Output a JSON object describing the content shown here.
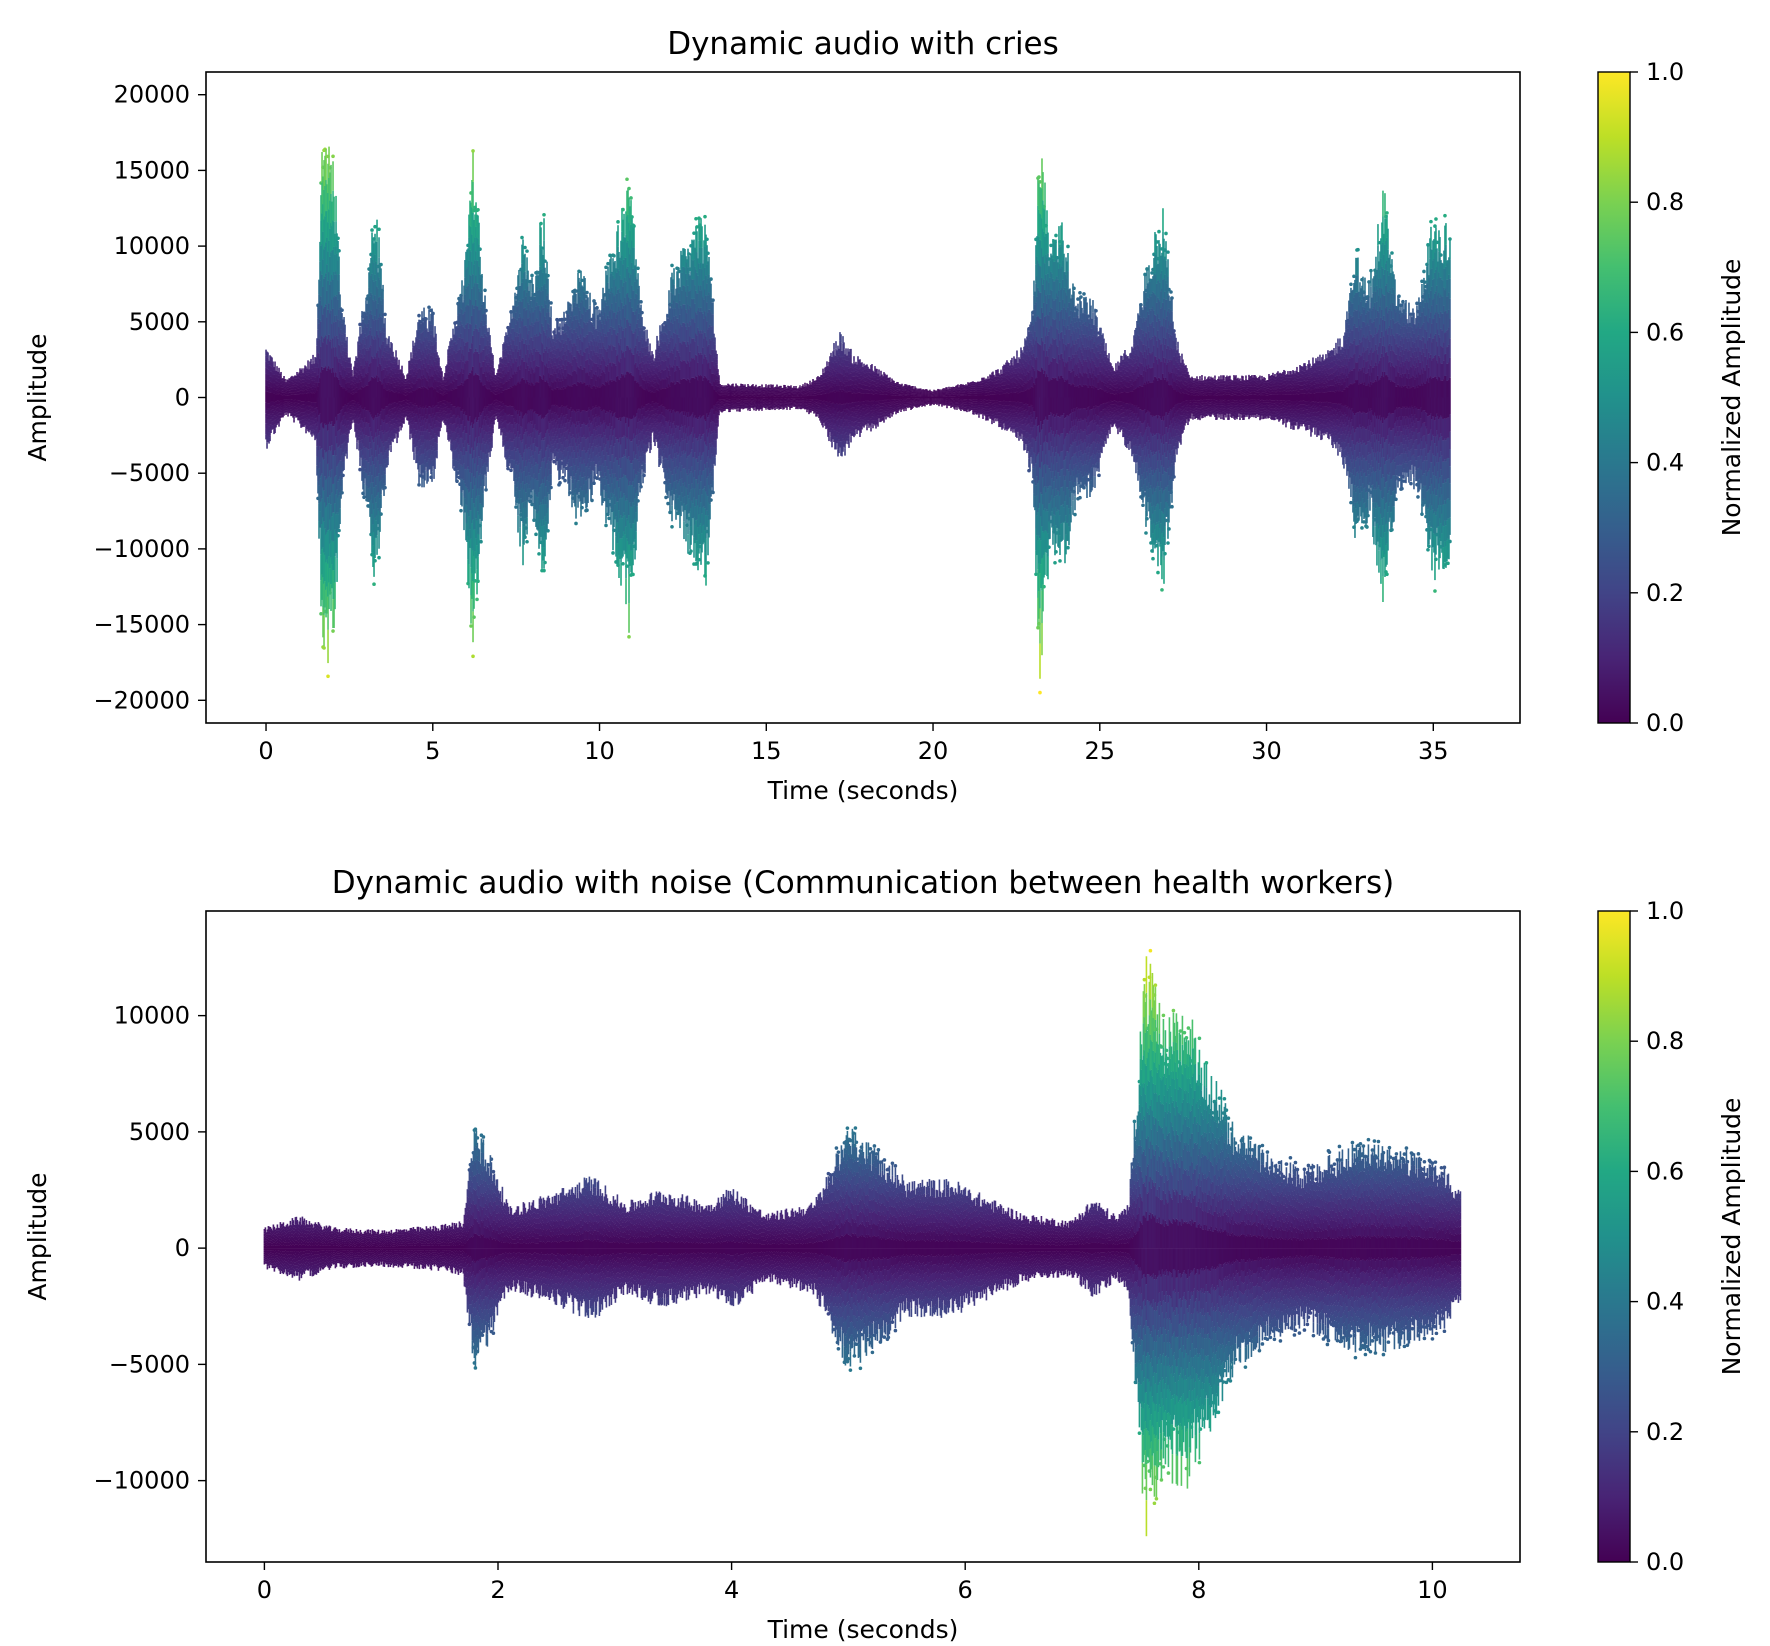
{
  "chart_data": [
    {
      "type": "scatter",
      "title": "Dynamic audio with cries",
      "xlabel": "Time (seconds)",
      "ylabel": "Amplitude",
      "xlim": [
        -1.8,
        37.6
      ],
      "ylim": [
        -21500,
        21500
      ],
      "xticks": [
        0,
        5,
        10,
        15,
        20,
        25,
        30,
        35
      ],
      "yticks": [
        -20000,
        -15000,
        -10000,
        -5000,
        0,
        5000,
        10000,
        15000,
        20000
      ],
      "x_range": [
        0,
        35.5
      ],
      "y_max": 19500,
      "colormap": "viridis",
      "colorbar": {
        "label": "Normalized Amplitude",
        "ticks": [
          0.0,
          0.2,
          0.4,
          0.6,
          0.8,
          1.0
        ],
        "tick_labels": [
          "0.0",
          "0.2",
          "0.4",
          "0.6",
          "0.8",
          "1.0"
        ]
      },
      "envelope": [
        [
          0,
          3500
        ],
        [
          0.6,
          1200
        ],
        [
          1.5,
          3000
        ],
        [
          1.7,
          18500
        ],
        [
          2.0,
          17000
        ],
        [
          2.3,
          6000
        ],
        [
          2.6,
          1500
        ],
        [
          2.9,
          6200
        ],
        [
          3.3,
          13000
        ],
        [
          3.6,
          5000
        ],
        [
          4.2,
          1500
        ],
        [
          4.6,
          6000
        ],
        [
          5.0,
          6000
        ],
        [
          5.3,
          1500
        ],
        [
          5.9,
          8000
        ],
        [
          6.2,
          16500
        ],
        [
          6.6,
          6000
        ],
        [
          6.9,
          1500
        ],
        [
          7.4,
          6500
        ],
        [
          7.7,
          11500
        ],
        [
          8.0,
          8000
        ],
        [
          8.3,
          13000
        ],
        [
          8.6,
          5000
        ],
        [
          9.0,
          6000
        ],
        [
          9.4,
          9000
        ],
        [
          9.9,
          6000
        ],
        [
          10.2,
          8500
        ],
        [
          10.5,
          11000
        ],
        [
          10.9,
          16000
        ],
        [
          11.2,
          7000
        ],
        [
          11.6,
          3000
        ],
        [
          12.2,
          8500
        ],
        [
          12.7,
          11000
        ],
        [
          13.2,
          12500
        ],
        [
          13.6,
          1000
        ],
        [
          16.0,
          800
        ],
        [
          16.6,
          1500
        ],
        [
          17.2,
          4500
        ],
        [
          17.6,
          3000
        ],
        [
          18.0,
          2500
        ],
        [
          19.0,
          1000
        ],
        [
          20.0,
          500
        ],
        [
          21.0,
          1000
        ],
        [
          22.0,
          2000
        ],
        [
          22.7,
          3500
        ],
        [
          23.0,
          6000
        ],
        [
          23.2,
          19000
        ],
        [
          23.5,
          10500
        ],
        [
          23.9,
          12000
        ],
        [
          24.3,
          7000
        ],
        [
          24.8,
          6500
        ],
        [
          25.4,
          2000
        ],
        [
          26.0,
          4000
        ],
        [
          26.5,
          10000
        ],
        [
          26.9,
          13000
        ],
        [
          27.3,
          4000
        ],
        [
          27.7,
          1500
        ],
        [
          30.0,
          1500
        ],
        [
          30.6,
          2000
        ],
        [
          31.2,
          2500
        ],
        [
          31.8,
          3000
        ],
        [
          32.3,
          4500
        ],
        [
          32.7,
          10000
        ],
        [
          33.1,
          8000
        ],
        [
          33.5,
          14500
        ],
        [
          33.9,
          7000
        ],
        [
          34.5,
          6000
        ],
        [
          35.0,
          12500
        ],
        [
          35.5,
          11500
        ]
      ]
    },
    {
      "type": "scatter",
      "title": "Dynamic audio with noise (Communication between health workers)",
      "xlabel": "Time (seconds)",
      "ylabel": "Amplitude",
      "xlim": [
        -0.5,
        10.75
      ],
      "ylim": [
        -13500,
        14500
      ],
      "xticks": [
        0,
        2,
        4,
        6,
        8,
        10
      ],
      "yticks": [
        -10000,
        -5000,
        0,
        5000,
        10000
      ],
      "x_range": [
        0,
        10.24
      ],
      "y_max": 13000,
      "colormap": "viridis",
      "colorbar": {
        "label": "Normalized Amplitude",
        "ticks": [
          0.0,
          0.2,
          0.4,
          0.6,
          0.8,
          1.0
        ],
        "tick_labels": [
          "0.0",
          "0.2",
          "0.4",
          "0.6",
          "0.8",
          "1.0"
        ]
      },
      "envelope": [
        [
          0,
          900
        ],
        [
          0.3,
          1400
        ],
        [
          0.6,
          900
        ],
        [
          1.0,
          800
        ],
        [
          1.5,
          1000
        ],
        [
          1.7,
          1200
        ],
        [
          1.8,
          5500
        ],
        [
          1.9,
          4500
        ],
        [
          2.1,
          1800
        ],
        [
          2.5,
          2500
        ],
        [
          2.8,
          3200
        ],
        [
          3.1,
          2000
        ],
        [
          3.4,
          2600
        ],
        [
          3.8,
          2000
        ],
        [
          4.0,
          2700
        ],
        [
          4.3,
          1500
        ],
        [
          4.7,
          2000
        ],
        [
          4.85,
          3500
        ],
        [
          5.0,
          5500
        ],
        [
          5.2,
          4500
        ],
        [
          5.5,
          3000
        ],
        [
          5.9,
          3000
        ],
        [
          6.2,
          2200
        ],
        [
          6.5,
          1500
        ],
        [
          6.9,
          1200
        ],
        [
          7.1,
          2200
        ],
        [
          7.3,
          1400
        ],
        [
          7.4,
          2000
        ],
        [
          7.55,
          13000
        ],
        [
          7.7,
          10000
        ],
        [
          7.9,
          10500
        ],
        [
          8.1,
          8000
        ],
        [
          8.3,
          5500
        ],
        [
          8.6,
          4000
        ],
        [
          8.9,
          3500
        ],
        [
          9.3,
          4500
        ],
        [
          9.7,
          4500
        ],
        [
          10.1,
          3500
        ],
        [
          10.24,
          2500
        ]
      ]
    }
  ]
}
